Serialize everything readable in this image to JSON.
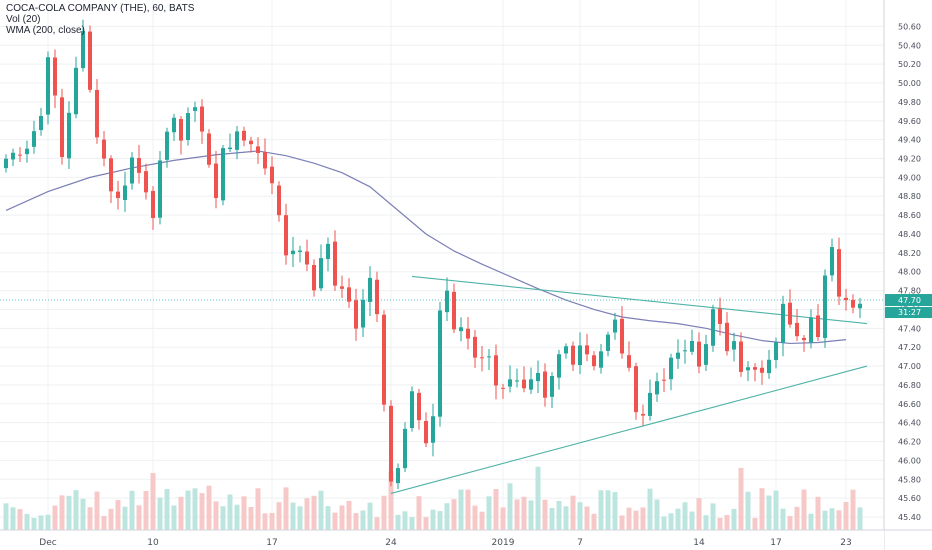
{
  "header": {
    "symbol_line": "COCA-COLA COMPANY (THE), 60, BATS",
    "vol_line": "Vol (20)",
    "wma_line": "WMA (200, close)"
  },
  "colors": {
    "up": "#26a69a",
    "down": "#ef5350",
    "wma": "#7b7fb5",
    "trendline": "#4fb3a8",
    "price_line": "#5bc0be",
    "last_badge": "#26a69a"
  },
  "chart_data": {
    "type": "candlestick",
    "timeframe": "60",
    "ylim": [
      45.4,
      50.7
    ],
    "y_ticks": [
      "50.60",
      "50.40",
      "50.20",
      "50.00",
      "49.80",
      "49.60",
      "49.40",
      "49.20",
      "49.00",
      "48.80",
      "48.60",
      "48.40",
      "48.20",
      "48.00",
      "47.80",
      "47.60",
      "47.40",
      "47.20",
      "47.00",
      "46.80",
      "46.60",
      "46.40",
      "46.20",
      "46.00",
      "45.80",
      "45.60",
      "45.40"
    ],
    "x_ticks": [
      {
        "label": "Dec",
        "bar": 6
      },
      {
        "label": "10",
        "bar": 21
      },
      {
        "label": "17",
        "bar": 38
      },
      {
        "label": "24",
        "bar": 55
      },
      {
        "label": "2019",
        "bar": 71
      },
      {
        "label": "7",
        "bar": 82
      },
      {
        "label": "14",
        "bar": 99
      },
      {
        "label": "17",
        "bar": 110
      },
      {
        "label": "23",
        "bar": 120
      }
    ],
    "last_price": "47.70",
    "countdown": "31:27",
    "close_anchors": [
      [
        0,
        49.2
      ],
      [
        3,
        49.35
      ],
      [
        5,
        49.65
      ],
      [
        6,
        50.35
      ],
      [
        7,
        49.8
      ],
      [
        8,
        49.2
      ],
      [
        10,
        50.2
      ],
      [
        11,
        50.5
      ],
      [
        12,
        49.9
      ],
      [
        13,
        49.5
      ],
      [
        15,
        48.9
      ],
      [
        16,
        48.75
      ],
      [
        18,
        49.2
      ],
      [
        20,
        48.9
      ],
      [
        21,
        48.65
      ],
      [
        22,
        49.1
      ],
      [
        24,
        49.7
      ],
      [
        25,
        49.4
      ],
      [
        27,
        49.8
      ],
      [
        28,
        49.5
      ],
      [
        30,
        48.75
      ],
      [
        31,
        49.35
      ],
      [
        33,
        49.4
      ],
      [
        35,
        49.4
      ],
      [
        36,
        49.25
      ],
      [
        38,
        49.0
      ],
      [
        39,
        48.55
      ],
      [
        40,
        48.2
      ],
      [
        42,
        48.3
      ],
      [
        43,
        48.0
      ],
      [
        44,
        47.85
      ],
      [
        46,
        48.3
      ],
      [
        47,
        47.9
      ],
      [
        49,
        47.7
      ],
      [
        50,
        47.35
      ],
      [
        52,
        48.0
      ],
      [
        53,
        47.6
      ],
      [
        54,
        46.6
      ],
      [
        55,
        45.85
      ],
      [
        56,
        46.0
      ],
      [
        58,
        46.7
      ],
      [
        60,
        46.1
      ],
      [
        61,
        46.5
      ],
      [
        62,
        47.6
      ],
      [
        63,
        47.8
      ],
      [
        64,
        47.4
      ],
      [
        66,
        47.3
      ],
      [
        67,
        47.1
      ],
      [
        69,
        47.15
      ],
      [
        70,
        46.75
      ],
      [
        72,
        46.9
      ],
      [
        74,
        46.7
      ],
      [
        76,
        46.85
      ],
      [
        77,
        46.6
      ],
      [
        79,
        47.1
      ],
      [
        80,
        47.2
      ],
      [
        81,
        47.1
      ],
      [
        82,
        47.25
      ],
      [
        84,
        47.05
      ],
      [
        86,
        47.3
      ],
      [
        87,
        47.45
      ],
      [
        89,
        46.9
      ],
      [
        90,
        46.6
      ],
      [
        91,
        46.5
      ],
      [
        92,
        46.7
      ],
      [
        93,
        46.85
      ],
      [
        95,
        47.0
      ],
      [
        96,
        47.15
      ],
      [
        97,
        47.1
      ],
      [
        98,
        47.25
      ],
      [
        99,
        47.0
      ],
      [
        100,
        47.3
      ],
      [
        101,
        47.55
      ],
      [
        103,
        47.2
      ],
      [
        104,
        47.35
      ],
      [
        105,
        47.0
      ],
      [
        106,
        46.95
      ],
      [
        108,
        46.9
      ],
      [
        109,
        47.0
      ],
      [
        110,
        47.3
      ],
      [
        111,
        47.6
      ],
      [
        112,
        47.5
      ],
      [
        113,
        47.4
      ],
      [
        114,
        47.35
      ],
      [
        115,
        47.6
      ],
      [
        116,
        47.3
      ],
      [
        117,
        47.9
      ],
      [
        118,
        48.2
      ],
      [
        119,
        47.8
      ],
      [
        120,
        47.7
      ]
    ],
    "wma_points": [
      [
        0,
        48.65
      ],
      [
        6,
        48.85
      ],
      [
        12,
        49.0
      ],
      [
        18,
        49.1
      ],
      [
        24,
        49.18
      ],
      [
        30,
        49.24
      ],
      [
        36,
        49.28
      ],
      [
        40,
        49.23
      ],
      [
        44,
        49.15
      ],
      [
        48,
        49.05
      ],
      [
        52,
        48.9
      ],
      [
        56,
        48.65
      ],
      [
        60,
        48.4
      ],
      [
        64,
        48.22
      ],
      [
        68,
        48.08
      ],
      [
        72,
        47.95
      ],
      [
        76,
        47.82
      ],
      [
        80,
        47.7
      ],
      [
        84,
        47.6
      ],
      [
        88,
        47.52
      ],
      [
        92,
        47.48
      ],
      [
        96,
        47.45
      ],
      [
        100,
        47.4
      ],
      [
        104,
        47.33
      ],
      [
        108,
        47.27
      ],
      [
        112,
        47.24
      ],
      [
        116,
        47.25
      ],
      [
        120,
        47.28
      ]
    ],
    "trendlines": [
      {
        "name": "upper resistance",
        "from": [
          58,
          47.95
        ],
        "to": [
          123,
          47.45
        ]
      },
      {
        "name": "lower support",
        "from": [
          55,
          45.65
        ],
        "to": [
          123,
          47.0
        ]
      }
    ]
  }
}
